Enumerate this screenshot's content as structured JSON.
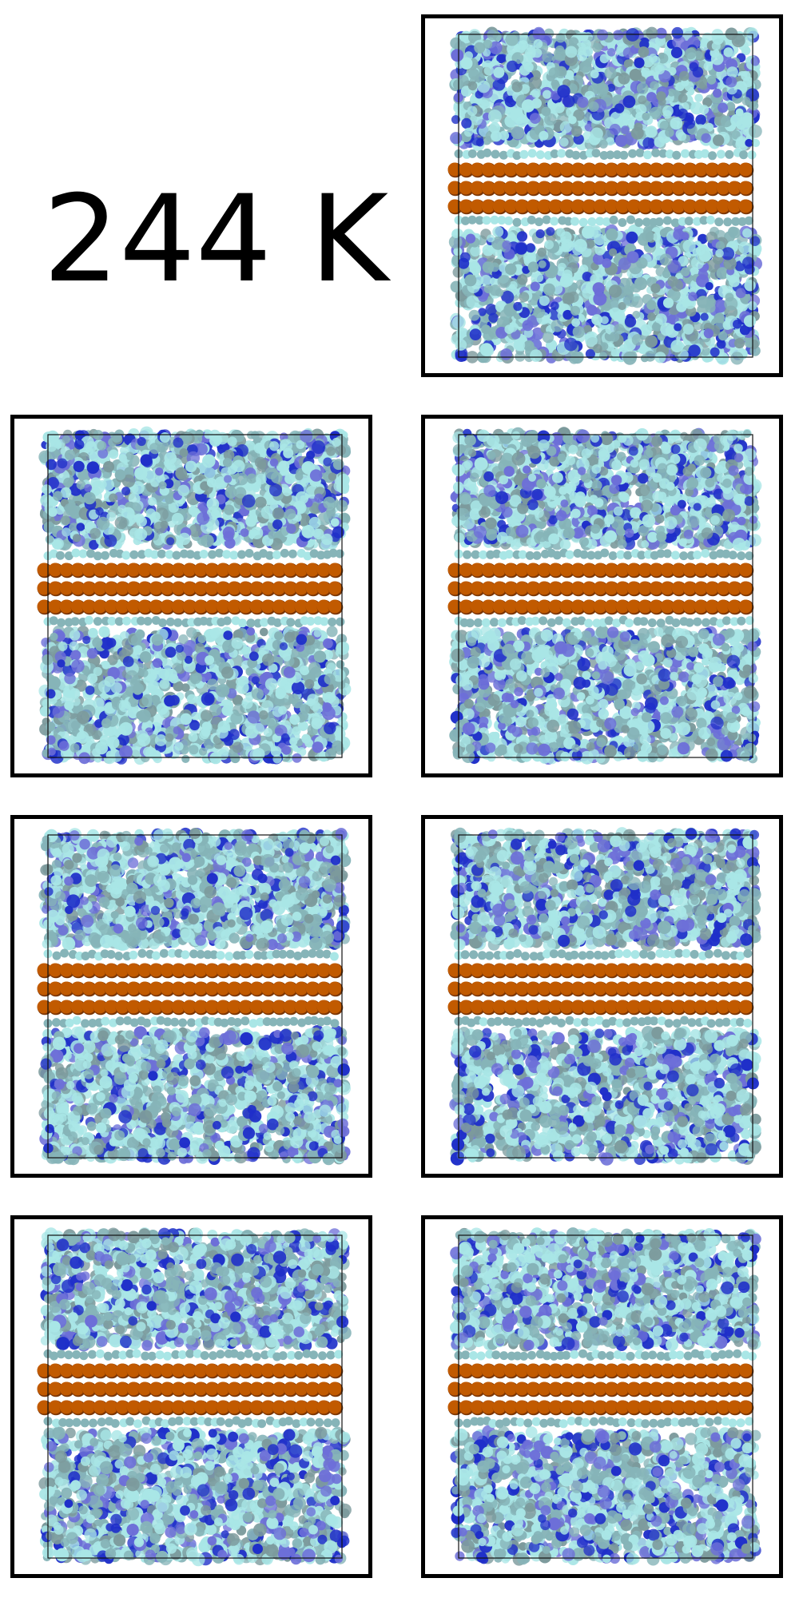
{
  "temperature_label": "244 K",
  "colors": {
    "frame_border": "#000000",
    "sim_box_outline": "#111111",
    "water_light": "#a9e6e6",
    "water_mid": "#86b4b8",
    "water_gray": "#7c9a9c",
    "water_blue": "#6d6fd8",
    "water_dark_blue": "#1f2fc9",
    "wall_orange": "#c15a00",
    "wall_dark": "#7a3400",
    "gap": "#ffffff"
  },
  "snapshots": [
    {
      "id": 1,
      "seed": 11
    },
    {
      "id": 2,
      "seed": 23
    },
    {
      "id": 3,
      "seed": 37
    },
    {
      "id": 4,
      "seed": 41
    },
    {
      "id": 5,
      "seed": 53
    },
    {
      "id": 6,
      "seed": 67
    },
    {
      "id": 7,
      "seed": 79
    }
  ]
}
